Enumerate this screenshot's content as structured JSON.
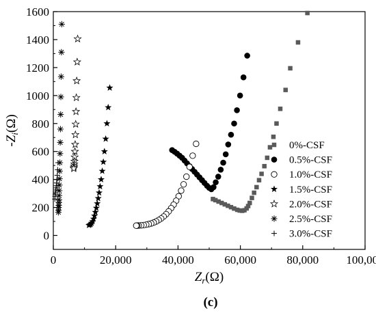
{
  "chart_data": {
    "type": "scatter",
    "panel_label": "(c)",
    "xlabel": {
      "main": "Z",
      "sub": "r",
      "unit": "(Ω)"
    },
    "ylabel": {
      "main": "-Z",
      "sub": "i",
      "unit": "(Ω)"
    },
    "xlim": [
      0,
      100000
    ],
    "ylim": [
      -100,
      1600
    ],
    "x_ticks": [
      0,
      20000,
      40000,
      60000,
      80000,
      100000
    ],
    "x_tick_labels": [
      "0",
      "20,000",
      "40,000",
      "60,000",
      "80,000",
      "100,000"
    ],
    "y_ticks": [
      0,
      200,
      400,
      600,
      800,
      1000,
      1200,
      1400,
      1600
    ],
    "y_tick_labels": [
      "0",
      "200",
      "400",
      "600",
      "800",
      "1000",
      "1200",
      "1400",
      "1600"
    ],
    "legend_position": "right",
    "series": [
      {
        "name": "0%-CSF",
        "marker": "square",
        "color": "#5a5a5a",
        "x": [
          81500,
          78500,
          76000,
          74500,
          72800,
          71600,
          70600,
          69500,
          68600,
          67700,
          66800,
          66000,
          65200,
          64400,
          63700,
          63000,
          62500,
          62000,
          61300,
          60600,
          59800,
          59000,
          58000,
          57000,
          56000,
          55000,
          54000,
          53000,
          52000,
          51200
        ],
        "y": [
          1590,
          1380,
          1195,
          1040,
          905,
          800,
          705,
          630,
          555,
          495,
          440,
          395,
          345,
          305,
          268,
          232,
          210,
          193,
          180,
          176,
          178,
          183,
          192,
          202,
          212,
          222,
          232,
          242,
          252,
          260
        ]
      },
      {
        "name": "0.5%-CSF",
        "marker": "circle",
        "color": "#000000",
        "x": [
          62200,
          61000,
          59900,
          58900,
          58000,
          57000,
          56100,
          55300,
          54500,
          53700,
          52900,
          52100,
          51400,
          50700,
          50000,
          49300,
          48500,
          47700,
          46900,
          46100,
          45300,
          44500,
          43700,
          42900,
          42100,
          41300,
          40500,
          39700,
          38900,
          38100
        ],
        "y": [
          1285,
          1130,
          1000,
          895,
          800,
          720,
          650,
          580,
          520,
          470,
          420,
          380,
          345,
          330,
          340,
          355,
          375,
          395,
          415,
          435,
          455,
          475,
          495,
          515,
          535,
          555,
          570,
          585,
          598,
          610
        ]
      },
      {
        "name": "1.0%-CSF",
        "marker": "open-circle",
        "color": "#000000",
        "x": [
          45800,
          44700,
          43700,
          42700,
          41800,
          41000,
          40200,
          39400,
          38600,
          37800,
          37000,
          36200,
          35400,
          34600,
          33800,
          33000,
          32200,
          31400,
          30600,
          29800,
          29000,
          28200,
          27400,
          26900,
          26600
        ],
        "y": [
          655,
          570,
          490,
          420,
          365,
          320,
          280,
          248,
          220,
          195,
          172,
          152,
          135,
          121,
          110,
          100,
          92,
          86,
          81,
          77,
          74,
          72,
          71,
          70,
          70
        ],
        "size": 4.2
      },
      {
        "name": "1.5%-CSF",
        "marker": "star",
        "color": "#000000",
        "x": [
          18100,
          17600,
          17200,
          16800,
          16400,
          16050,
          15700,
          15350,
          15000,
          14700,
          14400,
          14100,
          13800,
          13500,
          13200,
          12900,
          12600,
          12300,
          12000,
          11700,
          11400
        ],
        "y": [
          1055,
          915,
          800,
          690,
          600,
          525,
          460,
          400,
          350,
          305,
          265,
          228,
          196,
          166,
          140,
          118,
          100,
          88,
          80,
          76,
          73
        ]
      },
      {
        "name": "2.0%-CSF",
        "marker": "open-star",
        "color": "#000000",
        "x": [
          7800,
          7650,
          7500,
          7380,
          7270,
          7170,
          7080,
          7000,
          6920,
          6850,
          6780,
          6720,
          6660,
          6600,
          6550
        ],
        "y": [
          1405,
          1240,
          1105,
          985,
          885,
          795,
          720,
          650,
          600,
          560,
          530,
          510,
          495,
          485,
          478
        ]
      },
      {
        "name": "2.5%-CSF",
        "marker": "asterisk",
        "color": "#000000",
        "x": [
          2700,
          2600,
          2500,
          2420,
          2350,
          2280,
          2220,
          2160,
          2100,
          2050,
          2000,
          1950,
          1900,
          1860,
          1820,
          1780,
          1740,
          1700,
          1660,
          1620
        ],
        "y": [
          1510,
          1310,
          1135,
          990,
          865,
          760,
          665,
          585,
          520,
          460,
          405,
          360,
          320,
          285,
          255,
          235,
          215,
          200,
          180,
          165
        ]
      },
      {
        "name": "3.0%-CSF",
        "marker": "plus",
        "color": "#000000",
        "x": [
          1500,
          1380,
          1260,
          1150,
          1050,
          950,
          860,
          780,
          700,
          630,
          560,
          500
        ],
        "y": [
          520,
          470,
          430,
          400,
          375,
          355,
          340,
          325,
          310,
          295,
          280,
          260
        ]
      }
    ]
  }
}
